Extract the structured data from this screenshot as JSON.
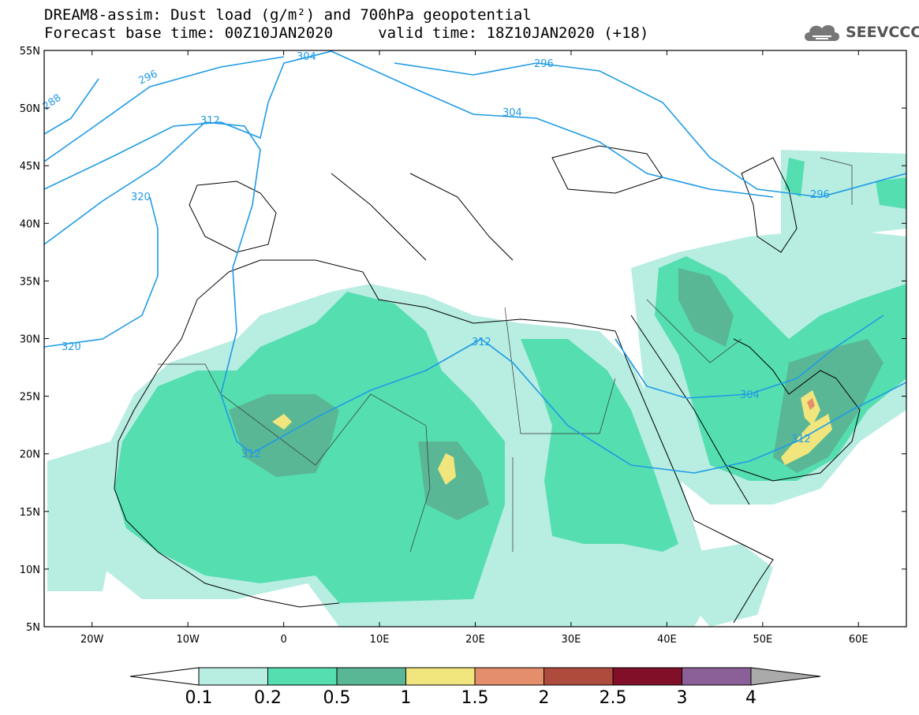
{
  "title": {
    "line1": "DREAM8-assim: Dust load (g/m²) and 700hPa geopotential",
    "line2": "Forecast base time: 00Z10JAN2020     valid time: 18Z10JAN2020 (+18)"
  },
  "logo": {
    "text": "SEEVCCC",
    "icon": "cloud-icon"
  },
  "map": {
    "lat_ticks": [
      "55N",
      "50N",
      "45N",
      "40N",
      "35N",
      "30N",
      "25N",
      "20N",
      "15N",
      "10N",
      "5N"
    ],
    "lon_ticks": [
      "20W",
      "10W",
      "0",
      "10E",
      "20E",
      "30E",
      "40E",
      "50E",
      "60E"
    ],
    "lat_range": [
      5,
      55
    ],
    "lon_range": [
      -25,
      65
    ]
  },
  "contours": {
    "color": "#1e9be6",
    "labels": [
      "288",
      "296",
      "304",
      "296",
      "312",
      "304",
      "296",
      "320",
      "320",
      "312",
      "312",
      "304",
      "312"
    ]
  },
  "colorbar": {
    "labels": [
      "0.1",
      "0.2",
      "0.5",
      "1",
      "1.5",
      "2",
      "2.5",
      "3",
      "4"
    ],
    "colors": [
      "#b8ede1",
      "#55deb0",
      "#5ab795",
      "#f1e67e",
      "#e58e6b",
      "#ae4b3c",
      "#800f27",
      "#8b5f97"
    ],
    "under_color": "#ffffff",
    "over_color": "#aaaaaa"
  }
}
